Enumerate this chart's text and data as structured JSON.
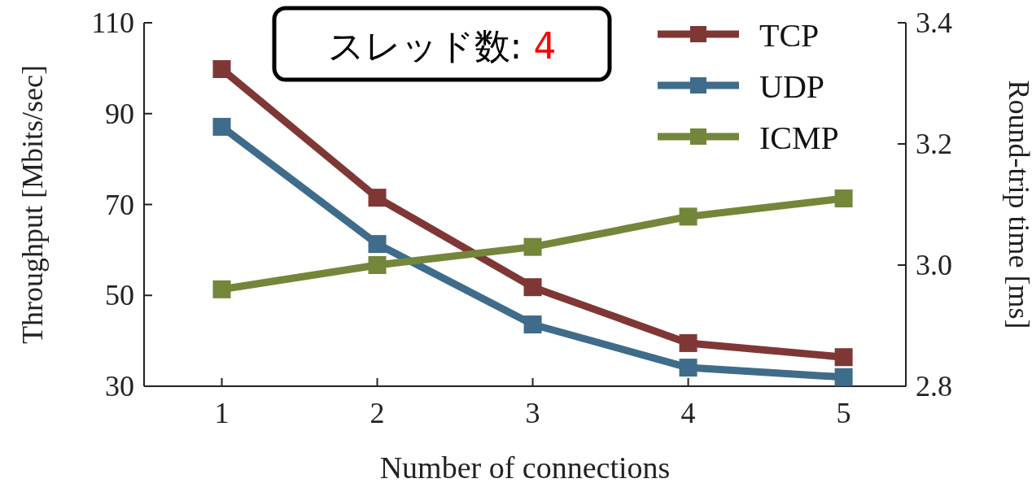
{
  "chart_data": {
    "type": "line",
    "xlabel": "Number of connections",
    "ylabel": "Throughput [Mbits/sec]",
    "y2label": "Round-trip time [ms]",
    "x": [
      1,
      2,
      3,
      4,
      5
    ],
    "xlim": [
      0.5,
      5.4
    ],
    "xticks": [
      1,
      2,
      3,
      4,
      5
    ],
    "ylim": [
      30,
      110
    ],
    "yticks": [
      30,
      50,
      70,
      90,
      110
    ],
    "y2lim": [
      2.8,
      3.4
    ],
    "y2ticks": [
      2.8,
      {
        "value": 3,
        "label": "3.0"
      },
      3.2,
      3.4
    ],
    "marker": "square",
    "line_style": "solid",
    "legend": "top right",
    "grid": false,
    "annotations": [
      "スレッド数: 4"
    ],
    "series": [
      {
        "name": "TCP",
        "color": "#7f3735",
        "values": [
          99.8,
          71.5,
          51.8,
          39.5,
          36.4
        ]
      },
      {
        "name": "UDP",
        "color": "#3f6c8a",
        "values": [
          87.1,
          61.3,
          43.6,
          34.1,
          32.0
        ]
      },
      {
        "name": "ICMP",
        "color": "#74863a",
        "axis": "y2",
        "values": [
          2.96,
          3.0,
          3.03,
          3.08,
          3.11
        ]
      }
    ]
  }
}
